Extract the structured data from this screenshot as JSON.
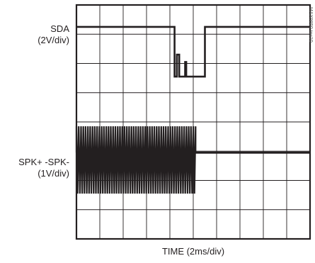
{
  "chart_data": {
    "type": "line",
    "title": "",
    "xlabel": "TIME (2ms/div)",
    "grid": true,
    "divisions": {
      "horizontal": 10,
      "vertical": 8
    },
    "series": [
      {
        "name": "SDA",
        "scale": "(2V/div)",
        "x_div": [
          0,
          4.2,
          4.2,
          4.3,
          4.3,
          4.4,
          4.4,
          4.65,
          4.65,
          4.7,
          4.7,
          5.5,
          5.5,
          10
        ],
        "y_div": [
          7.25,
          7.25,
          5.55,
          5.55,
          6.3,
          6.3,
          5.55,
          5.55,
          6.05,
          6.05,
          5.55,
          5.55,
          7.25,
          7.25
        ]
      },
      {
        "name": "SPK+ -SPK-",
        "scale": "(1V/div)",
        "burst_end_div": 5.1,
        "burst_top_div": 3.85,
        "burst_bottom_div": 1.55,
        "burst_cycles": 52,
        "steady_level_div": 2.95
      }
    ],
    "watermark": "MAX9850 toc10"
  }
}
